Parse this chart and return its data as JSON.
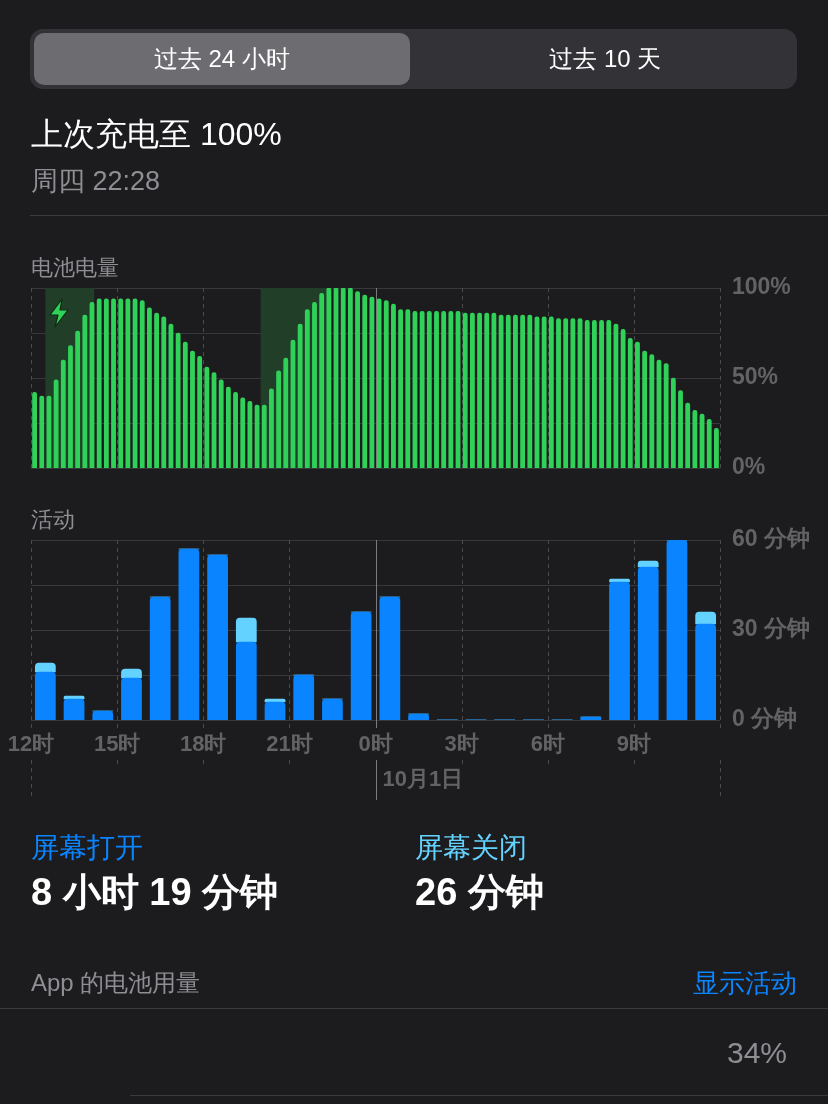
{
  "chart_data": [
    {
      "type": "other",
      "title": "上次充电至 100%",
      "subtitle": "周四 22:28",
      "annotations": [
        "过去 24 小时",
        "过去 10 天"
      ]
    },
    {
      "type": "bar",
      "title": "电池电量",
      "x": [
        "--09-30T12:07:30",
        "--09-30T12:22:30",
        "--09-30T12:37:30",
        "--09-30T12:52:30",
        "--09-30T13:07:30",
        "--09-30T13:22:30",
        "--09-30T13:37:30",
        "--09-30T13:52:30",
        "--09-30T14:07:30",
        "--09-30T14:22:30",
        "--09-30T14:37:30",
        "--09-30T14:52:30",
        "--09-30T15:07:30",
        "--09-30T15:22:30",
        "--09-30T15:37:30",
        "--09-30T15:52:30",
        "--09-30T16:07:30",
        "--09-30T16:22:30",
        "--09-30T16:37:30",
        "--09-30T16:52:30",
        "--09-30T17:07:30",
        "--09-30T17:22:30",
        "--09-30T17:37:30",
        "--09-30T17:52:30",
        "--09-30T18:07:30",
        "--09-30T18:22:30",
        "--09-30T18:37:30",
        "--09-30T18:52:30",
        "--09-30T19:07:30",
        "--09-30T19:22:30",
        "--09-30T19:37:30",
        "--09-30T19:52:30",
        "--09-30T20:07:30",
        "--09-30T20:22:30",
        "--09-30T20:37:30",
        "--09-30T20:52:30",
        "--09-30T21:07:30",
        "--09-30T21:22:30",
        "--09-30T21:37:30",
        "--09-30T21:52:30",
        "--09-30T22:07:30",
        "--09-30T22:22:30",
        "--09-30T22:37:30",
        "--09-30T22:52:30",
        "--09-30T23:07:30",
        "--09-30T23:22:30",
        "--09-30T23:37:30",
        "--09-30T23:52:30",
        "--10-01T00:07:30",
        "--10-01T00:22:30",
        "--10-01T00:37:30",
        "--10-01T00:52:30",
        "--10-01T01:07:30",
        "--10-01T01:22:30",
        "--10-01T01:37:30",
        "--10-01T01:52:30",
        "--10-01T02:07:30",
        "--10-01T02:22:30",
        "--10-01T02:37:30",
        "--10-01T02:52:30",
        "--10-01T03:07:30",
        "--10-01T03:22:30",
        "--10-01T03:37:30",
        "--10-01T03:52:30",
        "--10-01T04:07:30",
        "--10-01T04:22:30",
        "--10-01T04:37:30",
        "--10-01T04:52:30",
        "--10-01T05:07:30",
        "--10-01T05:22:30",
        "--10-01T05:37:30",
        "--10-01T05:52:30",
        "--10-01T06:07:30",
        "--10-01T06:22:30",
        "--10-01T06:37:30",
        "--10-01T06:52:30",
        "--10-01T07:07:30",
        "--10-01T07:22:30",
        "--10-01T07:37:30",
        "--10-01T07:52:30",
        "--10-01T08:07:30",
        "--10-01T08:22:30",
        "--10-01T08:37:30",
        "--10-01T08:52:30",
        "--10-01T09:07:30",
        "--10-01T09:22:30",
        "--10-01T09:37:30",
        "--10-01T09:52:30",
        "--10-01T10:07:30",
        "--10-01T10:22:30",
        "--10-01T10:37:30",
        "--10-01T10:52:30",
        "--10-01T11:07:30",
        "--10-01T11:22:30",
        "--10-01T11:37:30",
        "--10-01T11:52:30"
      ],
      "values": [
        42,
        40,
        40,
        49,
        60,
        68,
        76,
        85,
        92,
        94,
        94,
        94,
        94,
        94,
        94,
        93,
        89,
        86,
        84,
        80,
        75,
        70,
        65,
        62,
        56,
        53,
        49,
        45,
        42,
        39,
        37,
        35,
        35,
        44,
        54,
        61,
        71,
        80,
        88,
        92,
        97,
        100,
        100,
        100,
        100,
        98,
        96,
        95,
        94,
        93,
        91,
        88,
        88,
        87,
        87,
        87,
        87,
        87,
        87,
        87,
        86,
        86,
        86,
        86,
        86,
        85,
        85,
        85,
        85,
        85,
        84,
        84,
        84,
        83,
        83,
        83,
        83,
        82,
        82,
        82,
        82,
        80,
        77,
        72,
        70,
        65,
        63,
        60,
        58,
        50,
        43,
        36,
        32,
        30,
        27,
        22
      ],
      "color": "#30d158",
      "xlim": [
        "--09-30T12:00",
        "--10-01T12:00"
      ],
      "xticks": [
        {
          "value": "--09-30T12:00",
          "label": null
        },
        {
          "value": "--09-30T15:00",
          "label": null
        },
        {
          "value": "--09-30T18:00",
          "label": null
        },
        {
          "value": "--09-30T21:00",
          "label": null
        },
        {
          "value": "--10-01T00:00",
          "label": null
        },
        {
          "value": "--10-01T03:00",
          "label": null
        },
        {
          "value": "--10-01T06:00",
          "label": null
        },
        {
          "value": "--10-01T09:00",
          "label": null
        },
        {
          "value": "--10-01T12:00",
          "label": null
        }
      ],
      "ylim": [
        0,
        100
      ],
      "yticks": [
        {
          "value": 0,
          "label": "0%"
        },
        {
          "value": 25,
          "label": null
        },
        {
          "value": 50,
          "label": "50%"
        },
        {
          "value": 75,
          "label": null
        },
        {
          "value": 100,
          "label": "100%"
        }
      ],
      "tick_labels": "y",
      "grid": true,
      "bands": [
        {
          "axis": "x",
          "from": "--09-30T12:30",
          "to": "--09-30T14:12",
          "color": "#213f28"
        },
        {
          "axis": "x",
          "from": "--09-30T20:00",
          "to": "--09-30T22:28",
          "color": "#213f28"
        }
      ],
      "ref_lines": [
        {
          "axis": "x",
          "value": "--10-01T00:00"
        }
      ]
    },
    {
      "type": "bar",
      "title": "活动",
      "stacked": true,
      "x": [
        "--09-30T12:30",
        "--09-30T13:30",
        "--09-30T14:30",
        "--09-30T15:30",
        "--09-30T16:30",
        "--09-30T17:30",
        "--09-30T18:30",
        "--09-30T19:30",
        "--09-30T20:30",
        "--09-30T21:30",
        "--09-30T22:30",
        "--09-30T23:30",
        "--10-01T00:30",
        "--10-01T01:30",
        "--10-01T02:30",
        "--10-01T03:30",
        "--10-01T04:30",
        "--10-01T05:30",
        "--10-01T06:30",
        "--10-01T07:30",
        "--10-01T08:30",
        "--10-01T09:30",
        "--10-01T10:30",
        "--10-01T11:30"
      ],
      "series": [
        {
          "name": "屏幕打开",
          "color": "#0a84ff",
          "values": [
            16,
            7,
            3,
            14,
            41,
            57,
            55,
            26,
            6,
            15,
            7,
            36,
            41,
            2,
            0,
            0,
            0,
            0,
            0,
            1,
            46,
            51,
            60,
            32
          ]
        },
        {
          "name": "屏幕关闭",
          "color": "#64d2ff",
          "values": [
            3,
            1,
            0,
            3,
            0,
            0,
            0,
            8,
            1,
            0,
            0,
            0,
            0,
            0,
            0,
            0,
            0,
            0,
            0,
            0,
            1,
            2,
            0,
            4
          ]
        }
      ],
      "xlim": [
        "--09-30T12:00",
        "--10-01T12:00"
      ],
      "xticks": [
        {
          "value": "--09-30T12:00",
          "label": "12时"
        },
        {
          "value": "--09-30T15:00",
          "label": "15时"
        },
        {
          "value": "--09-30T18:00",
          "label": "18时"
        },
        {
          "value": "--09-30T21:00",
          "label": "21时"
        },
        {
          "value": "--10-01T00:00",
          "label": "0时"
        },
        {
          "value": "--10-01T03:00",
          "label": "3时"
        },
        {
          "value": "--10-01T06:00",
          "label": "6时"
        },
        {
          "value": "--10-01T09:00",
          "label": "9时"
        },
        {
          "value": "--10-01T12:00",
          "label": null
        }
      ],
      "ylim": [
        0,
        60
      ],
      "yticks": [
        {
          "value": 0,
          "label": "0 分钟"
        },
        {
          "value": 15,
          "label": null
        },
        {
          "value": 30,
          "label": "30 分钟"
        },
        {
          "value": 45,
          "label": null
        },
        {
          "value": 60,
          "label": "60 分钟"
        }
      ],
      "grid": true,
      "legend": "bottom",
      "annotations": [
        "8 小时 19 分钟",
        "26 分钟"
      ],
      "ref_lines": [
        {
          "axis": "x",
          "value": "--10-01T00:00",
          "label": "10月1日"
        }
      ]
    },
    {
      "type": "other",
      "title": "App 的电池用量",
      "annotations": [
        "显示活动",
        "34%"
      ]
    }
  ]
}
